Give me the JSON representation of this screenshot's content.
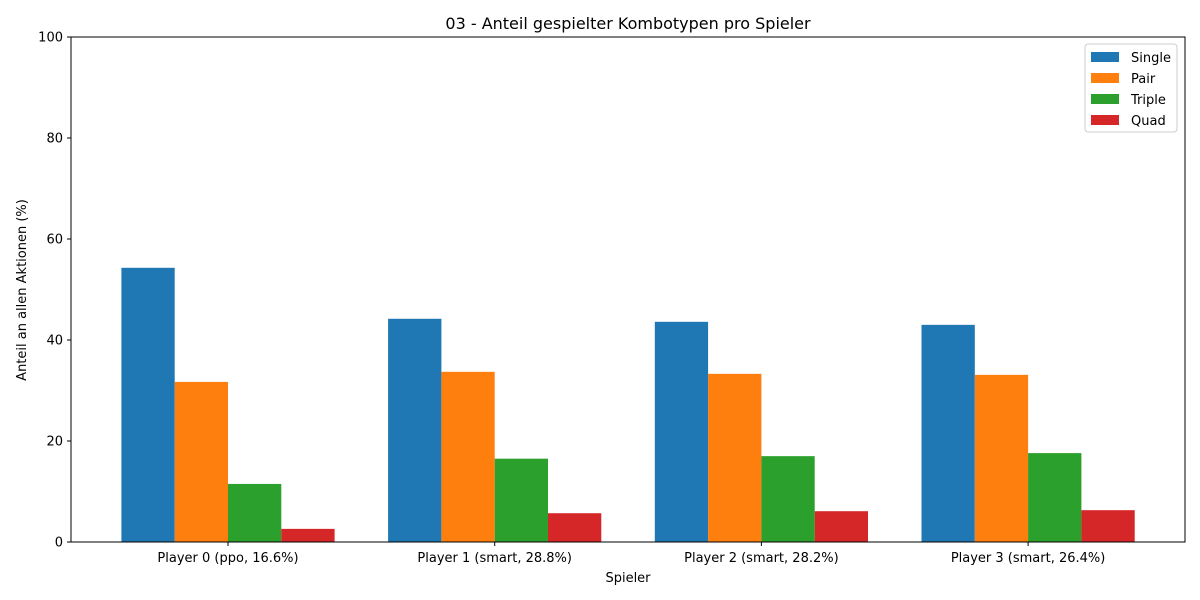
{
  "chart_data": {
    "type": "bar",
    "title": "03 - Anteil gespielter Kombotypen pro Spieler",
    "xlabel": "Spieler",
    "ylabel": "Anteil an allen Aktionen (%)",
    "categories": [
      "Player 0 (ppo, 16.6%)",
      "Player 1 (smart, 28.8%)",
      "Player 2 (smart, 28.2%)",
      "Player 3 (smart, 26.4%)"
    ],
    "series": [
      {
        "name": "Single",
        "color": "#1f77b4",
        "values": [
          54.3,
          44.2,
          43.6,
          43.0
        ]
      },
      {
        "name": "Pair",
        "color": "#ff7f0e",
        "values": [
          31.7,
          33.7,
          33.3,
          33.1
        ]
      },
      {
        "name": "Triple",
        "color": "#2ca02c",
        "values": [
          11.5,
          16.5,
          17.0,
          17.6
        ]
      },
      {
        "name": "Quad",
        "color": "#d62728",
        "values": [
          2.6,
          5.7,
          6.1,
          6.3
        ]
      }
    ],
    "ylim": [
      0,
      100
    ],
    "yticks": [
      0,
      20,
      40,
      60,
      80,
      100
    ],
    "grid": false,
    "legend_position": "top-right"
  }
}
